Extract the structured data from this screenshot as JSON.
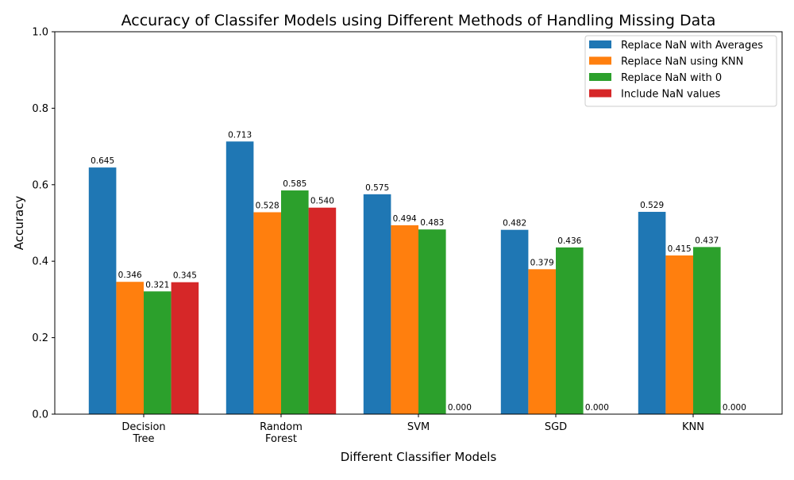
{
  "chart_data": {
    "type": "bar",
    "title": "Accuracy of Classifer Models using Different Methods of Handling Missing Data",
    "xlabel": "Different Classifier Models",
    "ylabel": "Accuracy",
    "ylim": [
      0,
      1
    ],
    "yticks": [
      "0.0",
      "0.2",
      "0.4",
      "0.6",
      "0.8",
      "1.0"
    ],
    "grid": false,
    "legend_position": "top-right",
    "categories": [
      [
        "Decision",
        "Tree"
      ],
      [
        "Random",
        "Forest"
      ],
      [
        "SVM"
      ],
      [
        "SGD"
      ],
      [
        "KNN"
      ]
    ],
    "series": [
      {
        "name": "Replace NaN with Averages",
        "color": "#1f77b4",
        "values": [
          0.645,
          0.713,
          0.575,
          0.482,
          0.529
        ],
        "labels": [
          "0.645",
          "0.713",
          "0.575",
          "0.482",
          "0.529"
        ]
      },
      {
        "name": "Replace NaN using KNN",
        "color": "#ff7f0e",
        "values": [
          0.346,
          0.528,
          0.494,
          0.379,
          0.415
        ],
        "labels": [
          "0.346",
          "0.528",
          "0.494",
          "0.379",
          "0.415"
        ]
      },
      {
        "name": "Replace NaN with 0",
        "color": "#2ca02c",
        "values": [
          0.321,
          0.585,
          0.483,
          0.436,
          0.437
        ],
        "labels": [
          "0.321",
          "0.585",
          "0.483",
          "0.436",
          "0.437"
        ]
      },
      {
        "name": "Include NaN values",
        "color": "#d62728",
        "values": [
          0.345,
          0.54,
          0.0,
          0.0,
          0.0
        ],
        "labels": [
          "0.345",
          "0.540",
          "0.000",
          "0.000",
          "0.000"
        ]
      }
    ]
  }
}
